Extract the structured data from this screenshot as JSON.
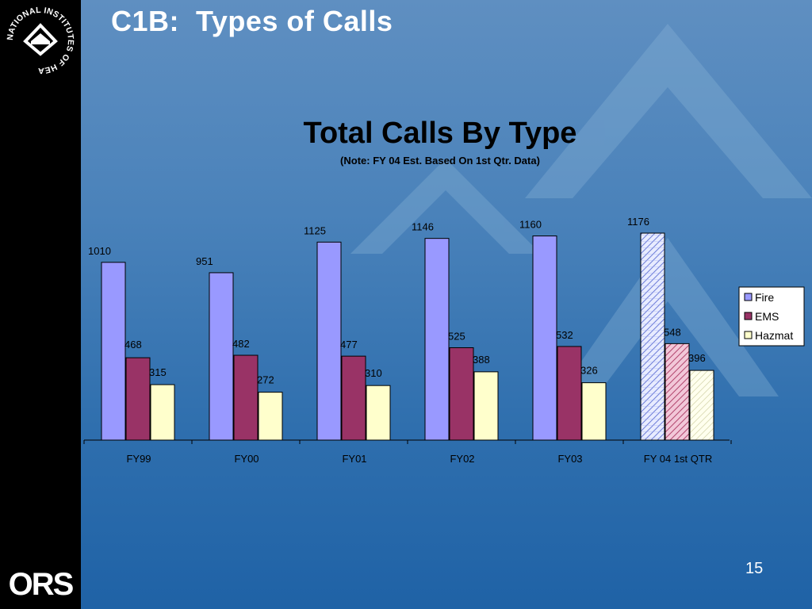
{
  "slide": {
    "title": "C1B:  Types of Calls",
    "page_number": "15"
  },
  "logos": {
    "nih_text": "NATIONAL INSTITUTES OF HEALTH",
    "ors_text": "ORS"
  },
  "colors": {
    "fire": "#9999ff",
    "ems": "#993366",
    "hazmat": "#ffffcc",
    "axis": "#000000"
  },
  "chart_data": {
    "type": "bar",
    "title": "Total Calls By Type",
    "subtitle": "(Note: FY 04 Est. Based On 1st Qtr. Data)",
    "categories": [
      "FY99",
      "FY00",
      "FY01",
      "FY02",
      "FY03",
      "FY 04 1st QTR"
    ],
    "series": [
      {
        "name": "Fire",
        "values": [
          1010,
          951,
          1125,
          1146,
          1160,
          1176
        ]
      },
      {
        "name": "EMS",
        "values": [
          468,
          482,
          477,
          525,
          532,
          548
        ]
      },
      {
        "name": "Hazmat",
        "values": [
          315,
          272,
          310,
          388,
          326,
          396
        ]
      }
    ],
    "estimated_category": "FY 04 1st QTR",
    "ylim": [
      0,
      1176
    ],
    "grid": false,
    "legend_position": "right"
  }
}
